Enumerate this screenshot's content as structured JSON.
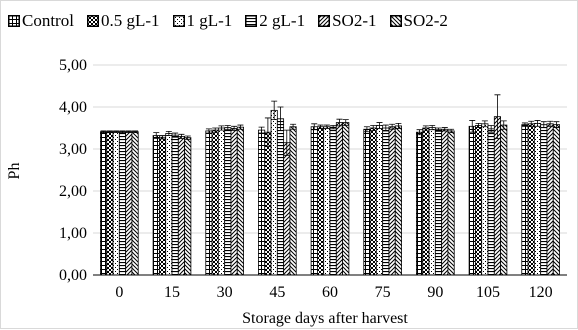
{
  "chart_data": {
    "type": "bar",
    "title": "",
    "xlabel": "Storage days after harvest",
    "ylabel": "Ph",
    "ylim": [
      0,
      5
    ],
    "yticks": [
      "0,00",
      "1,00",
      "2,00",
      "3,00",
      "4,00",
      "5,00"
    ],
    "categories": [
      "0",
      "15",
      "30",
      "45",
      "60",
      "75",
      "90",
      "105",
      "120"
    ],
    "grid": true,
    "legend_position": "top",
    "series": [
      {
        "name": "Control",
        "pattern": "grid",
        "values": [
          3.41,
          3.32,
          3.43,
          3.45,
          3.53,
          3.47,
          3.4,
          3.54,
          3.58
        ],
        "errors": [
          0.02,
          0.07,
          0.05,
          0.07,
          0.07,
          0.06,
          0.06,
          0.14,
          0.04
        ]
      },
      {
        "name": "0.5 gL-1",
        "pattern": "check",
        "values": [
          3.41,
          3.28,
          3.45,
          3.4,
          3.53,
          3.5,
          3.5,
          3.56,
          3.6
        ],
        "errors": [
          0.02,
          0.04,
          0.05,
          0.34,
          0.04,
          0.06,
          0.05,
          0.05,
          0.06
        ]
      },
      {
        "name": "1 gL-1",
        "pattern": "dots",
        "values": [
          3.41,
          3.37,
          3.5,
          3.92,
          3.53,
          3.56,
          3.51,
          3.6,
          3.61
        ],
        "errors": [
          0.02,
          0.05,
          0.05,
          0.22,
          0.04,
          0.07,
          0.05,
          0.07,
          0.07
        ]
      },
      {
        "name": "2 gL-1",
        "pattern": "hlines",
        "values": [
          3.41,
          3.33,
          3.51,
          3.72,
          3.52,
          3.5,
          3.46,
          3.48,
          3.58
        ],
        "errors": [
          0.02,
          0.05,
          0.05,
          0.28,
          0.04,
          0.07,
          0.04,
          0.08,
          0.07
        ]
      },
      {
        "name": "SO2-1",
        "pattern": "diagonal",
        "values": [
          3.41,
          3.3,
          3.49,
          3.15,
          3.63,
          3.53,
          3.47,
          3.77,
          3.6
        ],
        "errors": [
          0.02,
          0.05,
          0.05,
          0.3,
          0.08,
          0.06,
          0.04,
          0.52,
          0.06
        ]
      },
      {
        "name": "SO2-2",
        "pattern": "zigzag",
        "values": [
          3.41,
          3.27,
          3.52,
          3.53,
          3.63,
          3.55,
          3.43,
          3.57,
          3.58
        ],
        "errors": [
          0.02,
          0.04,
          0.05,
          0.06,
          0.07,
          0.06,
          0.04,
          0.1,
          0.07
        ]
      }
    ]
  }
}
